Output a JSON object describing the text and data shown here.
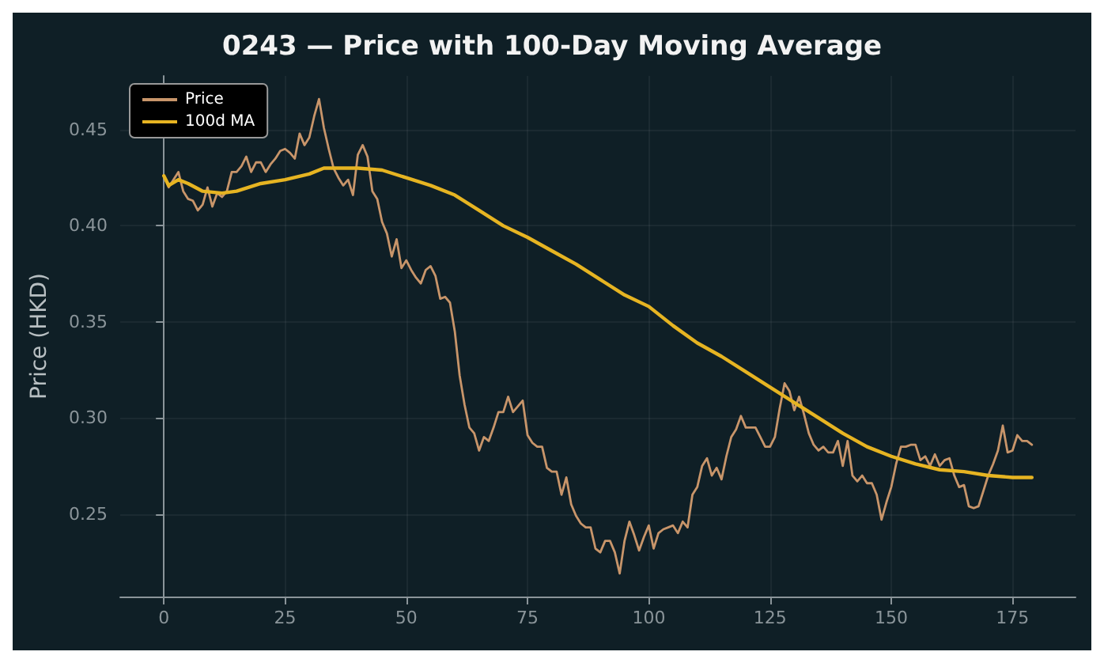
{
  "chart_data": {
    "type": "line",
    "title": "0243 — Price with 100-Day Moving Average",
    "ylabel": "Price (HKD)",
    "xlim": [
      -9,
      188
    ],
    "xticks": [
      0,
      25,
      50,
      75,
      100,
      125,
      150,
      175
    ],
    "ylim": [
      0.207,
      0.478
    ],
    "yticks": [
      {
        "value": 0.25,
        "label": "0.25"
      },
      {
        "value": 0.3,
        "label": "0.30"
      },
      {
        "value": 0.35,
        "label": "0.35"
      },
      {
        "value": 0.4,
        "label": "0.40"
      },
      {
        "value": 0.45,
        "label": "0.45"
      }
    ],
    "grid": true,
    "legend": "top left",
    "marker": "none",
    "line_style": "solid",
    "series": [
      {
        "name": "Price",
        "color": "#c8956a",
        "x": [
          0,
          1,
          2,
          3,
          4,
          5,
          6,
          7,
          8,
          9,
          10,
          11,
          12,
          13,
          14,
          15,
          16,
          17,
          18,
          19,
          20,
          21,
          22,
          23,
          24,
          25,
          26,
          27,
          28,
          29,
          30,
          31,
          32,
          33,
          34,
          35,
          36,
          37,
          38,
          39,
          40,
          41,
          42,
          43,
          44,
          45,
          46,
          47,
          48,
          49,
          50,
          51,
          52,
          53,
          54,
          55,
          56,
          57,
          58,
          59,
          60,
          61,
          62,
          63,
          64,
          65,
          66,
          67,
          68,
          69,
          70,
          71,
          72,
          73,
          74,
          75,
          76,
          77,
          78,
          79,
          80,
          81,
          82,
          83,
          84,
          85,
          86,
          87,
          88,
          89,
          90,
          91,
          92,
          93,
          94,
          95,
          96,
          97,
          98,
          99,
          100,
          101,
          102,
          103,
          104,
          105,
          106,
          107,
          108,
          109,
          110,
          111,
          112,
          113,
          114,
          115,
          116,
          117,
          118,
          119,
          120,
          121,
          122,
          123,
          124,
          125,
          126,
          127,
          128,
          129,
          130,
          131,
          132,
          133,
          134,
          135,
          136,
          137,
          138,
          139,
          140,
          141,
          142,
          143,
          144,
          145,
          146,
          147,
          148,
          149,
          150,
          151,
          152,
          153,
          154,
          155,
          156,
          157,
          158,
          159,
          160,
          161,
          162,
          163,
          164,
          165,
          166,
          167,
          168,
          169,
          170,
          171,
          172,
          173,
          174,
          175,
          176,
          177,
          178,
          179
        ],
        "values": [
          0.426,
          0.42,
          0.424,
          0.428,
          0.418,
          0.414,
          0.413,
          0.408,
          0.411,
          0.42,
          0.41,
          0.417,
          0.415,
          0.418,
          0.428,
          0.428,
          0.431,
          0.436,
          0.428,
          0.433,
          0.433,
          0.428,
          0.432,
          0.435,
          0.439,
          0.44,
          0.438,
          0.435,
          0.448,
          0.442,
          0.446,
          0.457,
          0.466,
          0.451,
          0.44,
          0.43,
          0.425,
          0.421,
          0.424,
          0.416,
          0.437,
          0.442,
          0.436,
          0.418,
          0.414,
          0.402,
          0.396,
          0.384,
          0.393,
          0.378,
          0.382,
          0.377,
          0.373,
          0.37,
          0.377,
          0.379,
          0.374,
          0.362,
          0.363,
          0.36,
          0.345,
          0.322,
          0.307,
          0.295,
          0.292,
          0.283,
          0.29,
          0.288,
          0.295,
          0.303,
          0.303,
          0.311,
          0.303,
          0.306,
          0.309,
          0.291,
          0.287,
          0.285,
          0.285,
          0.274,
          0.272,
          0.272,
          0.26,
          0.269,
          0.255,
          0.249,
          0.245,
          0.243,
          0.243,
          0.232,
          0.23,
          0.236,
          0.236,
          0.23,
          0.219,
          0.236,
          0.246,
          0.239,
          0.231,
          0.238,
          0.244,
          0.232,
          0.24,
          0.242,
          0.243,
          0.244,
          0.24,
          0.246,
          0.243,
          0.26,
          0.264,
          0.275,
          0.279,
          0.27,
          0.274,
          0.268,
          0.28,
          0.29,
          0.294,
          0.301,
          0.295,
          0.295,
          0.295,
          0.29,
          0.285,
          0.285,
          0.29,
          0.305,
          0.318,
          0.314,
          0.304,
          0.311,
          0.302,
          0.292,
          0.286,
          0.283,
          0.285,
          0.282,
          0.282,
          0.288,
          0.275,
          0.288,
          0.27,
          0.267,
          0.27,
          0.266,
          0.266,
          0.26,
          0.247,
          0.256,
          0.264,
          0.276,
          0.285,
          0.285,
          0.286,
          0.286,
          0.278,
          0.28,
          0.275,
          0.281,
          0.275,
          0.278,
          0.279,
          0.27,
          0.264,
          0.265,
          0.254,
          0.253,
          0.254,
          0.262,
          0.27,
          0.276,
          0.283,
          0.296,
          0.282,
          0.283,
          0.291,
          0.288,
          0.288,
          0.286
        ]
      },
      {
        "name": "100d MA",
        "color": "#e6b422",
        "x": [
          0,
          1,
          3,
          5,
          8,
          12,
          15,
          20,
          25,
          30,
          33,
          36,
          40,
          45,
          50,
          55,
          60,
          65,
          70,
          75,
          80,
          85,
          90,
          95,
          100,
          105,
          110,
          115,
          120,
          125,
          130,
          135,
          140,
          145,
          150,
          155,
          160,
          165,
          170,
          175,
          179
        ],
        "values": [
          0.426,
          0.421,
          0.424,
          0.422,
          0.418,
          0.417,
          0.418,
          0.422,
          0.424,
          0.427,
          0.43,
          0.43,
          0.43,
          0.429,
          0.425,
          0.421,
          0.416,
          0.408,
          0.4,
          0.394,
          0.387,
          0.38,
          0.372,
          0.364,
          0.358,
          0.348,
          0.339,
          0.332,
          0.324,
          0.316,
          0.308,
          0.3,
          0.292,
          0.285,
          0.28,
          0.276,
          0.273,
          0.272,
          0.27,
          0.269,
          0.269
        ]
      }
    ]
  }
}
